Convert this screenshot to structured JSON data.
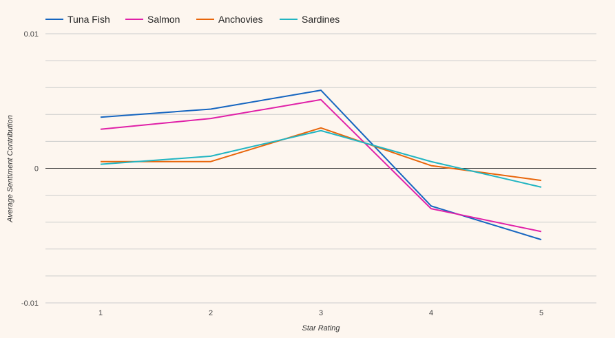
{
  "chart_data": {
    "type": "line",
    "title": "",
    "xlabel": "Star Rating",
    "ylabel": "Average Sentiment Contribution",
    "x": [
      1,
      2,
      3,
      4,
      5
    ],
    "x_ticks": [
      "1",
      "2",
      "3",
      "4",
      "5"
    ],
    "ylim": [
      -0.01,
      0.01
    ],
    "y_ticks": [
      {
        "value": 0.01,
        "label": "0.01"
      },
      {
        "value": 0,
        "label": "0"
      },
      {
        "value": -0.01,
        "label": "-0.01"
      }
    ],
    "grid": true,
    "legend_position": "top-left",
    "series": [
      {
        "name": "Tuna Fish",
        "color": "#1565c0",
        "values": [
          0.0038,
          0.0044,
          0.0058,
          -0.0028,
          -0.0053
        ]
      },
      {
        "name": "Salmon",
        "color": "#e020a8",
        "values": [
          0.0029,
          0.0037,
          0.0051,
          -0.003,
          -0.0047
        ]
      },
      {
        "name": "Anchovies",
        "color": "#e8650a",
        "values": [
          0.0005,
          0.0005,
          0.003,
          0.0002,
          -0.0009
        ]
      },
      {
        "name": "Sardines",
        "color": "#22b5c2",
        "values": [
          0.0003,
          0.0009,
          0.0028,
          0.0005,
          -0.0014
        ]
      }
    ]
  }
}
